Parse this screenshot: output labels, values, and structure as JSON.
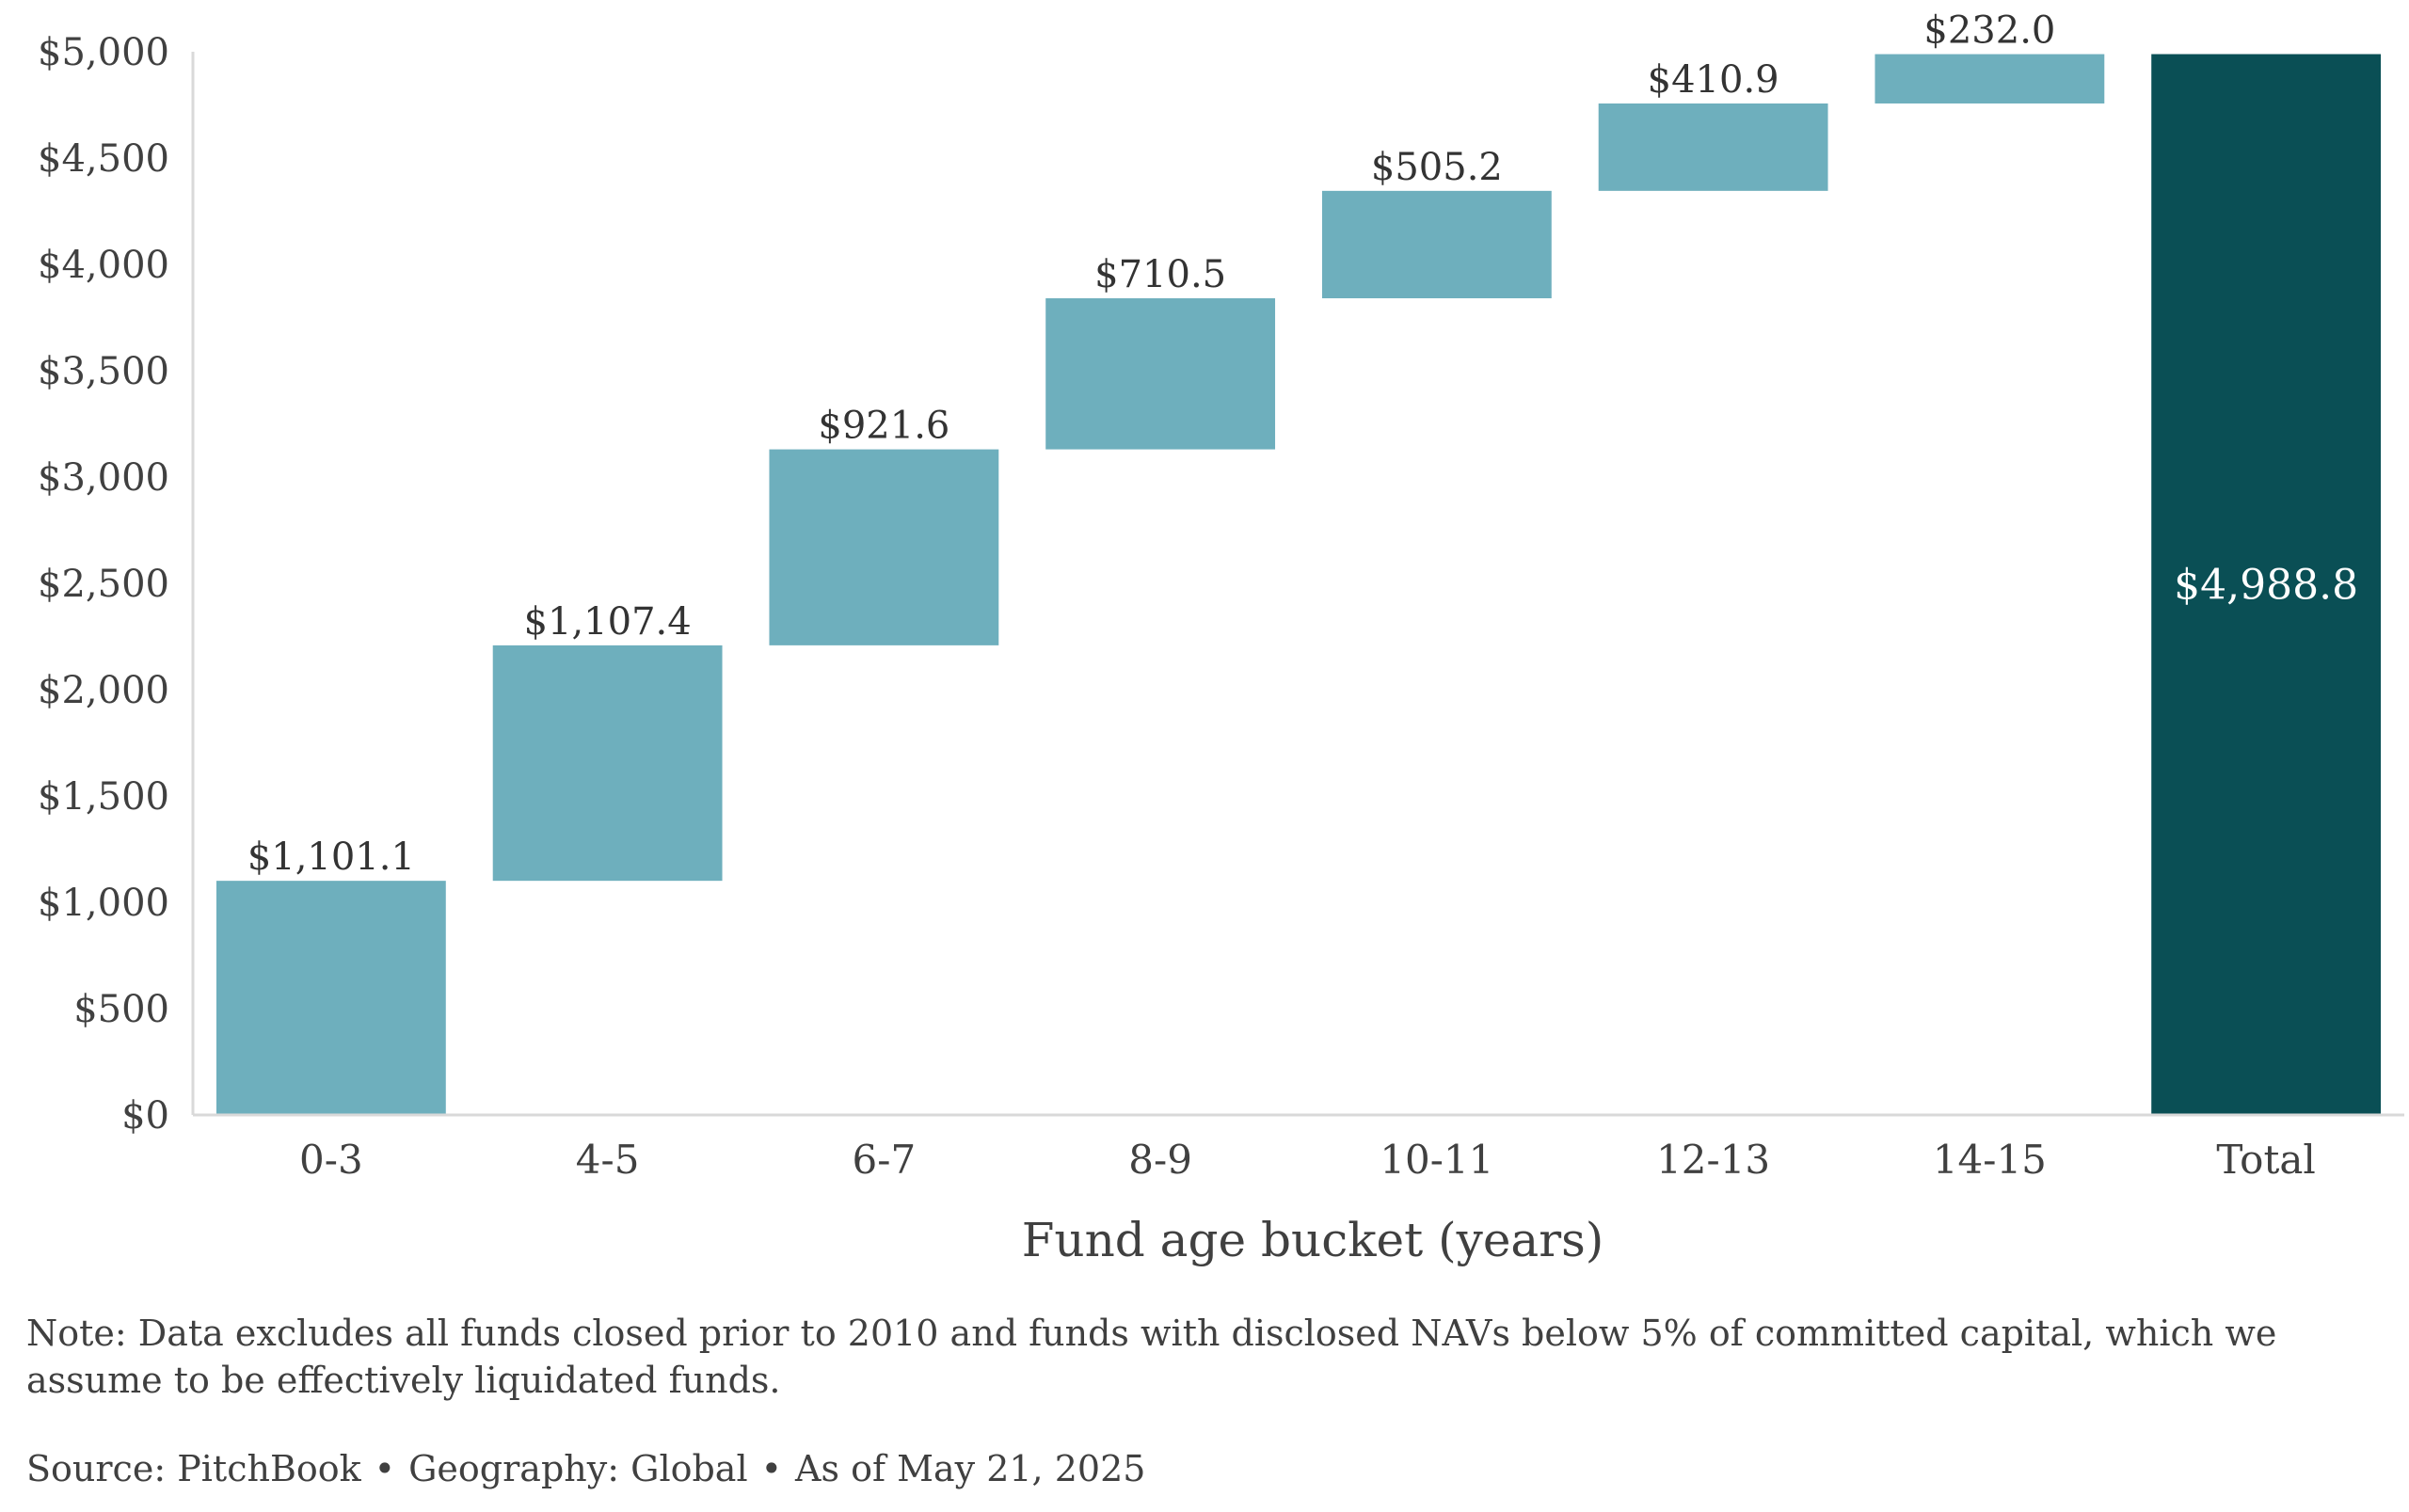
{
  "chart_data": {
    "type": "bar",
    "subtype": "waterfall",
    "categories": [
      "0-3",
      "4-5",
      "6-7",
      "8-9",
      "10-11",
      "12-13",
      "14-15",
      "Total"
    ],
    "values": [
      1101.1,
      1107.4,
      921.6,
      710.5,
      505.2,
      410.9,
      232.0,
      4988.8
    ],
    "data_labels": [
      "$1,101.1",
      "$1,107.4",
      "$921.6",
      "$710.5",
      "$505.2",
      "$410.9",
      "$232.0",
      "$4,988.8"
    ],
    "total_index": 7,
    "xlabel": "Fund age bucket (years)",
    "ylabel": "",
    "ylim": [
      0,
      5000
    ],
    "yticks": [
      0,
      500,
      1000,
      1500,
      2000,
      2500,
      3000,
      3500,
      4000,
      4500,
      5000
    ],
    "ytick_labels": [
      "$0",
      "$500",
      "$1,000",
      "$1,500",
      "$2,000",
      "$2,500",
      "$3,000",
      "$3,500",
      "$4,000",
      "$4,500",
      "$5,000"
    ],
    "grid": false,
    "colors": {
      "step": "#6eafbd",
      "total": "#0a4f55",
      "axis": "#d9d9d9"
    }
  },
  "footer": {
    "note": "Note: Data excludes all funds closed prior to 2010 and funds with disclosed NAVs below 5% of committed capital, which we assume to be effectively liquidated funds.",
    "source": "Source: PitchBook",
    "geography": "Geography: Global",
    "as_of": "As of May 21, 2025",
    "separator": "•"
  }
}
